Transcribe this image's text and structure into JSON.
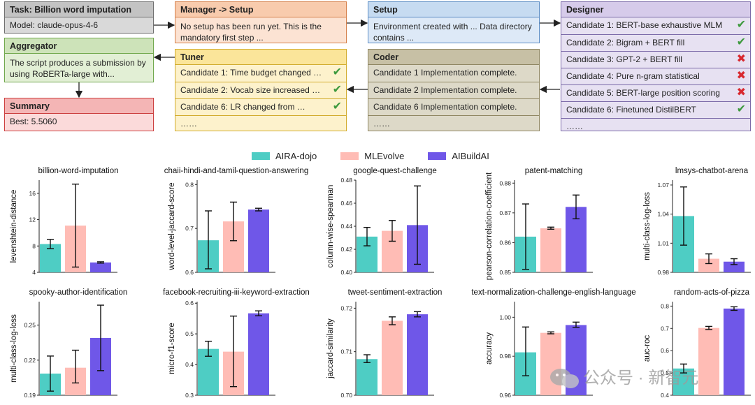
{
  "diagram": {
    "task": {
      "title": "Task:   Billion word imputation",
      "model": "Model: claude-opus-4-6"
    },
    "manager": {
      "title": "Manager -> Setup",
      "body": "No setup has been run yet. This is the mandatory first step ..."
    },
    "setup": {
      "title": "Setup",
      "body": "Environment created with ... Data directory contains ..."
    },
    "designer": {
      "title": "Designer",
      "candidates": [
        {
          "label": "Candidate 1: BERT-base exhaustive MLM",
          "status": "pass"
        },
        {
          "label": "Candidate 2: Bigram + BERT fill",
          "status": "pass"
        },
        {
          "label": "Candidate 3: GPT-2 + BERT fill",
          "status": "fail"
        },
        {
          "label": "Candidate 4: Pure n-gram statistical",
          "status": "fail"
        },
        {
          "label": "Candidate 5: BERT-large position scoring",
          "status": "fail"
        },
        {
          "label": "Candidate 6: Finetuned DistilBERT",
          "status": "pass"
        }
      ],
      "more": "……"
    },
    "aggregator": {
      "title": "Aggregator",
      "body": "The script produces a submission by using RoBERTa-large with..."
    },
    "tuner": {
      "title": "Tuner",
      "candidates": [
        {
          "label": "Candidate 1: Time budget changed …",
          "status": "pass"
        },
        {
          "label": "Candidate 2: Vocab size increased …",
          "status": "pass"
        },
        {
          "label": "Candidate 6: LR changed from …",
          "status": "pass"
        }
      ],
      "more": "……"
    },
    "coder": {
      "title": "Coder",
      "items": [
        "Candidate 1 Implementation complete.",
        "Candidate 2 Implementation complete.",
        "Candidate 6 Implementation complete."
      ],
      "more": "……"
    },
    "summary": {
      "title": "Summary",
      "body": "Best: 5.5060"
    }
  },
  "icons": {
    "pass": "check-icon",
    "fail": "cross-icon"
  },
  "legend": [
    {
      "name": "AIRA-dojo",
      "color": "#4ecdc4"
    },
    {
      "name": "MLEvolve",
      "color": "#ffbcb5"
    },
    {
      "name": "AIBuildAI",
      "color": "#6f57e8"
    }
  ],
  "chart_data": [
    {
      "type": "bar",
      "title": "billion-word-imputation",
      "ylabel": "levenshtein-distance",
      "ylim": [
        4,
        18
      ],
      "yticks": [
        4,
        8,
        12,
        16
      ],
      "series": [
        {
          "name": "AIRA-dojo",
          "value": 8.3,
          "err": [
            7.6,
            9.0
          ]
        },
        {
          "name": "MLEvolve",
          "value": 11.1,
          "err": [
            4.8,
            17.4
          ]
        },
        {
          "name": "AIBuildAI",
          "value": 5.5,
          "err": [
            5.4,
            5.6
          ]
        }
      ]
    },
    {
      "type": "bar",
      "title": "chaii-hindi-and-tamil-question-answering",
      "ylabel": "word-level-jaccard-score",
      "ylim": [
        0.6,
        0.81
      ],
      "yticks": [
        0.6,
        0.7,
        0.8
      ],
      "series": [
        {
          "name": "AIRA-dojo",
          "value": 0.673,
          "err": [
            0.608,
            0.74
          ]
        },
        {
          "name": "MLEvolve",
          "value": 0.716,
          "err": [
            0.672,
            0.76
          ]
        },
        {
          "name": "AIBuildAI",
          "value": 0.743,
          "err": [
            0.74,
            0.746
          ]
        }
      ]
    },
    {
      "type": "bar",
      "title": "google-quest-challenge",
      "ylabel": "column-wise-spearman",
      "ylim": [
        0.4,
        0.48
      ],
      "yticks": [
        0.4,
        0.42,
        0.44,
        0.46,
        0.48
      ],
      "series": [
        {
          "name": "AIRA-dojo",
          "value": 0.431,
          "err": [
            0.423,
            0.439
          ]
        },
        {
          "name": "MLEvolve",
          "value": 0.436,
          "err": [
            0.427,
            0.445
          ]
        },
        {
          "name": "AIBuildAI",
          "value": 0.441,
          "err": [
            0.407,
            0.475
          ]
        }
      ]
    },
    {
      "type": "bar",
      "title": "patent-matching",
      "ylabel": "pearson-correlation-coefficient",
      "ylim": [
        0.85,
        0.881
      ],
      "yticks": [
        0.85,
        0.86,
        0.87,
        0.88
      ],
      "series": [
        {
          "name": "AIRA-dojo",
          "value": 0.862,
          "err": [
            0.851,
            0.873
          ]
        },
        {
          "name": "MLEvolve",
          "value": 0.8648,
          "err": [
            0.8645,
            0.8652
          ]
        },
        {
          "name": "AIBuildAI",
          "value": 0.872,
          "err": [
            0.868,
            0.876
          ]
        }
      ]
    },
    {
      "type": "bar",
      "title": "lmsys-chatbot-arena",
      "ylabel": "multi-class-log-loss",
      "ylim": [
        0.98,
        1.075
      ],
      "yticks": [
        0.98,
        1.01,
        1.04,
        1.07
      ],
      "series": [
        {
          "name": "AIRA-dojo",
          "value": 1.038,
          "err": [
            1.008,
            1.068
          ]
        },
        {
          "name": "MLEvolve",
          "value": 0.994,
          "err": [
            0.989,
            0.999
          ]
        },
        {
          "name": "AIBuildAI",
          "value": 0.991,
          "err": [
            0.988,
            0.994
          ]
        }
      ]
    },
    {
      "type": "bar",
      "title": "spooky-author-identification",
      "ylabel": "multi-class-log-loss",
      "ylim": [
        0.19,
        0.27
      ],
      "yticks": [
        0.19,
        0.22,
        0.25
      ],
      "series": [
        {
          "name": "AIRA-dojo",
          "value": 0.2085,
          "err": [
            0.1935,
            0.2235
          ]
        },
        {
          "name": "MLEvolve",
          "value": 0.2135,
          "err": [
            0.2005,
            0.2285
          ]
        },
        {
          "name": "AIBuildAI",
          "value": 0.239,
          "err": [
            0.211,
            0.267
          ]
        }
      ]
    },
    {
      "type": "bar",
      "title": "facebook-recruiting-iii-keyword-extraction",
      "ylabel": "micro-f1-score",
      "ylim": [
        0.3,
        0.605
      ],
      "yticks": [
        0.3,
        0.4,
        0.5,
        0.6
      ],
      "series": [
        {
          "name": "AIRA-dojo",
          "value": 0.451,
          "err": [
            0.427,
            0.476
          ]
        },
        {
          "name": "MLEvolve",
          "value": 0.442,
          "err": [
            0.328,
            0.558
          ]
        },
        {
          "name": "AIBuildAI",
          "value": 0.567,
          "err": [
            0.559,
            0.575
          ]
        }
      ]
    },
    {
      "type": "bar",
      "title": "tweet-sentiment-extraction",
      "ylabel": "jaccard-similarity",
      "ylim": [
        0.7,
        0.7215
      ],
      "yticks": [
        0.7,
        0.71,
        0.72
      ],
      "series": [
        {
          "name": "AIRA-dojo",
          "value": 0.7083,
          "err": [
            0.7075,
            0.7093
          ]
        },
        {
          "name": "MLEvolve",
          "value": 0.7171,
          "err": [
            0.7162,
            0.718
          ]
        },
        {
          "name": "AIBuildAI",
          "value": 0.7186,
          "err": [
            0.718,
            0.7192
          ]
        }
      ]
    },
    {
      "type": "bar",
      "title": "text-normalization-challenge-english-language",
      "ylabel": "accuracy",
      "ylim": [
        0.96,
        1.008
      ],
      "yticks": [
        0.96,
        0.98,
        1.0
      ],
      "series": [
        {
          "name": "AIRA-dojo",
          "value": 0.982,
          "err": [
            0.97,
            0.995
          ]
        },
        {
          "name": "MLEvolve",
          "value": 0.992,
          "err": [
            0.9915,
            0.9925
          ]
        },
        {
          "name": "AIBuildAI",
          "value": 0.996,
          "err": [
            0.9948,
            0.9975
          ]
        }
      ]
    },
    {
      "type": "bar",
      "title": "random-acts-of-pizza",
      "ylabel": "auc-roc",
      "ylim": [
        0.4,
        0.82
      ],
      "yticks": [
        0.4,
        0.5,
        0.6,
        0.7,
        0.8
      ],
      "series": [
        {
          "name": "AIRA-dojo",
          "value": 0.52,
          "err": [
            0.5,
            0.54
          ]
        },
        {
          "name": "MLEvolve",
          "value": 0.702,
          "err": [
            0.695,
            0.709
          ]
        },
        {
          "name": "AIBuildAI",
          "value": 0.789,
          "err": [
            0.781,
            0.797
          ]
        }
      ]
    }
  ],
  "watermark": {
    "text": "公众号 · 新智元"
  }
}
